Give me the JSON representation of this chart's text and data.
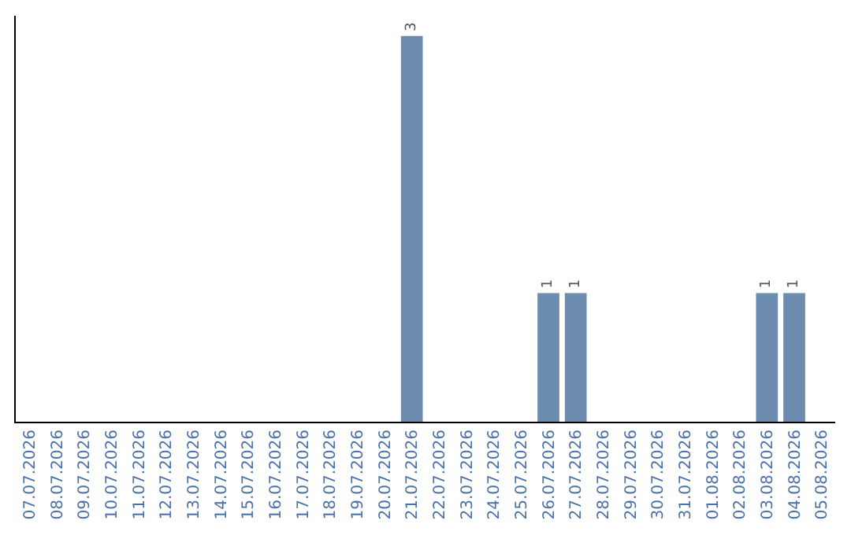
{
  "chart_data": {
    "type": "bar",
    "categories": [
      "07.07.2026",
      "08.07.2026",
      "09.07.2026",
      "10.07.2026",
      "11.07.2026",
      "12.07.2026",
      "13.07.2026",
      "14.07.2026",
      "15.07.2026",
      "16.07.2026",
      "17.07.2026",
      "18.07.2026",
      "19.07.2026",
      "20.07.2026",
      "21.07.2026",
      "22.07.2026",
      "23.07.2026",
      "24.07.2026",
      "25.07.2026",
      "26.07.2026",
      "27.07.2026",
      "28.07.2026",
      "29.07.2026",
      "30.07.2026",
      "31.07.2026",
      "01.08.2026",
      "02.08.2026",
      "03.08.2026",
      "04.08.2026",
      "05.08.2026"
    ],
    "values": [
      null,
      null,
      null,
      null,
      null,
      null,
      null,
      null,
      null,
      null,
      null,
      null,
      null,
      null,
      3,
      null,
      null,
      null,
      null,
      1,
      1,
      null,
      null,
      null,
      null,
      null,
      null,
      1,
      1,
      null
    ],
    "data_labels": true,
    "color": "#6b8cae",
    "grid": false,
    "legend": false,
    "tick_labels": "x"
  }
}
